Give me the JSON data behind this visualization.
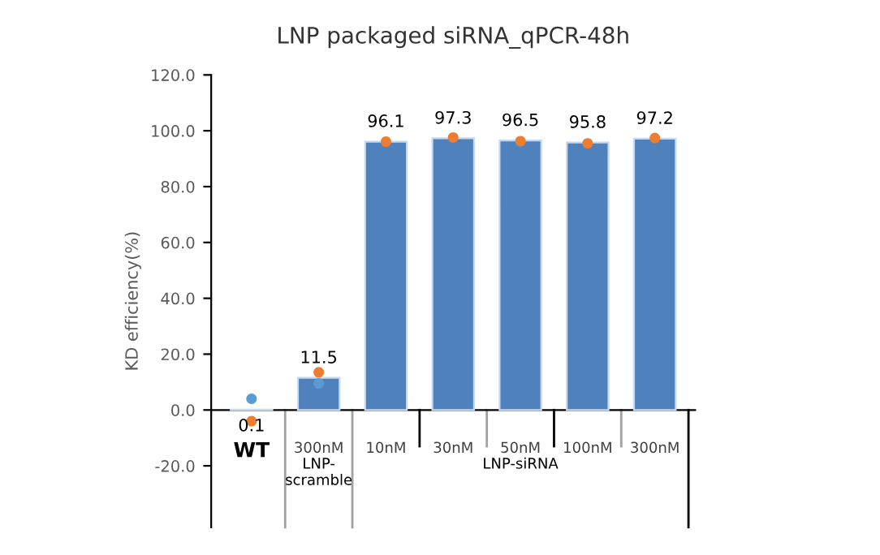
{
  "chart_data": {
    "type": "bar",
    "title": "LNP packaged siRNA_qPCR-48h",
    "ylabel": "KD efficiency(%)",
    "categories": [
      "WT",
      "300nM",
      "10nM",
      "30nM",
      "50nM",
      "100nM",
      "300nM"
    ],
    "series": [
      {
        "color": "#4f81bd",
        "values": [
          0.1,
          11.5,
          96.1,
          97.3,
          96.5,
          95.8,
          97.2
        ],
        "value_labels": [
          "0.1",
          "11.5",
          "96.1",
          "97.3",
          "96.5",
          "95.8",
          "97.2"
        ]
      },
      {
        "type": "scatter",
        "color": "#5b9bd5",
        "values": [
          4,
          9.5,
          null,
          null,
          null,
          null,
          null
        ]
      },
      {
        "type": "scatter",
        "color": "#ed7d31",
        "values": [
          -4,
          13.5,
          96.1,
          97.6,
          96.3,
          95.5,
          97.4
        ]
      }
    ],
    "annotations": [
      "LNP-\nscramble",
      "LNP-siRNA"
    ],
    "ylim": [
      -42,
      120
    ],
    "yticks": [
      {
        "value": -20,
        "label": "-20.0"
      },
      {
        "value": 0,
        "label": "0.0"
      },
      {
        "value": 20,
        "label": "20.0"
      },
      {
        "value": 40,
        "label": "40.0"
      },
      {
        "value": 60,
        "label": "60.0"
      },
      {
        "value": 80,
        "label": "80.0"
      },
      {
        "value": 100,
        "label": "100.0"
      },
      {
        "value": 120,
        "label": "120.0"
      }
    ],
    "marker": "circle",
    "grid": false,
    "legend": false
  }
}
